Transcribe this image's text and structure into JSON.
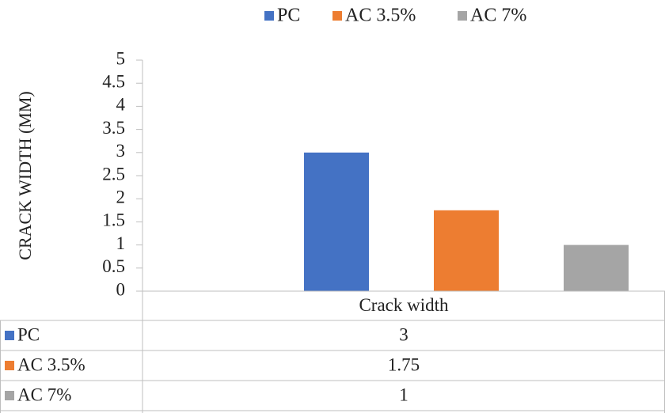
{
  "chart_data": {
    "type": "bar",
    "categories": [
      "Crack width"
    ],
    "series": [
      {
        "name": "PC",
        "values": [
          3
        ],
        "color": "#4472C4",
        "label": "3"
      },
      {
        "name": "AC 3.5%",
        "values": [
          1.75
        ],
        "color": "#ED7D31",
        "label": "1.75"
      },
      {
        "name": "AC 7%",
        "values": [
          1
        ],
        "color": "#A5A5A5",
        "label": "1"
      }
    ],
    "ylabel": "CRACK WIDTH (MM)",
    "ylim": [
      0,
      5
    ],
    "yticks": [
      "0",
      "0.5",
      "1",
      "1.5",
      "2",
      "2.5",
      "3",
      "3.5",
      "4",
      "4.5",
      "5"
    ],
    "legend_position": "top",
    "data_table": true,
    "grid": false
  }
}
